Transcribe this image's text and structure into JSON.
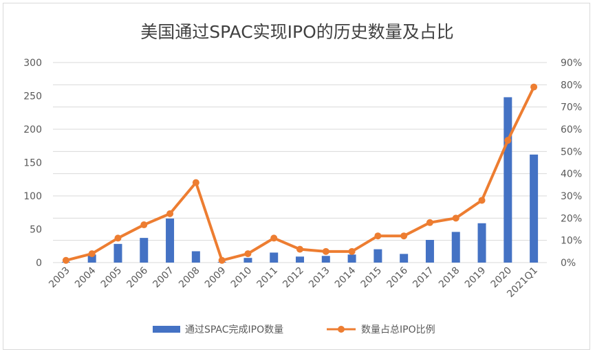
{
  "chart_data": {
    "type": "bar",
    "title": "美国通过SPAC实现IPO的历史数量及占比",
    "categories": [
      "2003",
      "2004",
      "2005",
      "2006",
      "2007",
      "2008",
      "2009",
      "2010",
      "2011",
      "2012",
      "2013",
      "2014",
      "2015",
      "2016",
      "2017",
      "2018",
      "2019",
      "2020",
      "2021Q1"
    ],
    "series": [
      {
        "name": "通过SPAC完成IPO数量",
        "type": "bar",
        "axis": "left",
        "color": "#4472C4",
        "values": [
          1,
          12,
          28,
          37,
          66,
          17,
          1,
          7,
          15,
          9,
          10,
          12,
          20,
          13,
          34,
          46,
          59,
          248,
          162
        ]
      },
      {
        "name": "数量占总IPO比例",
        "type": "line",
        "axis": "right",
        "color": "#ED7D31",
        "values": [
          1,
          4,
          11,
          17,
          22,
          36,
          1,
          4,
          11,
          6,
          5,
          5,
          12,
          12,
          18,
          20,
          28,
          55,
          79
        ]
      }
    ],
    "y_left": {
      "min": 0,
      "max": 300,
      "ticks": [
        "0",
        "50",
        "100",
        "150",
        "200",
        "250",
        "300"
      ]
    },
    "y_right": {
      "min": 0,
      "max": 90,
      "ticks": [
        "0%",
        "10%",
        "20%",
        "30%",
        "40%",
        "50%",
        "60%",
        "70%",
        "80%",
        "90%"
      ]
    },
    "grid": true,
    "legend_position": "bottom"
  }
}
